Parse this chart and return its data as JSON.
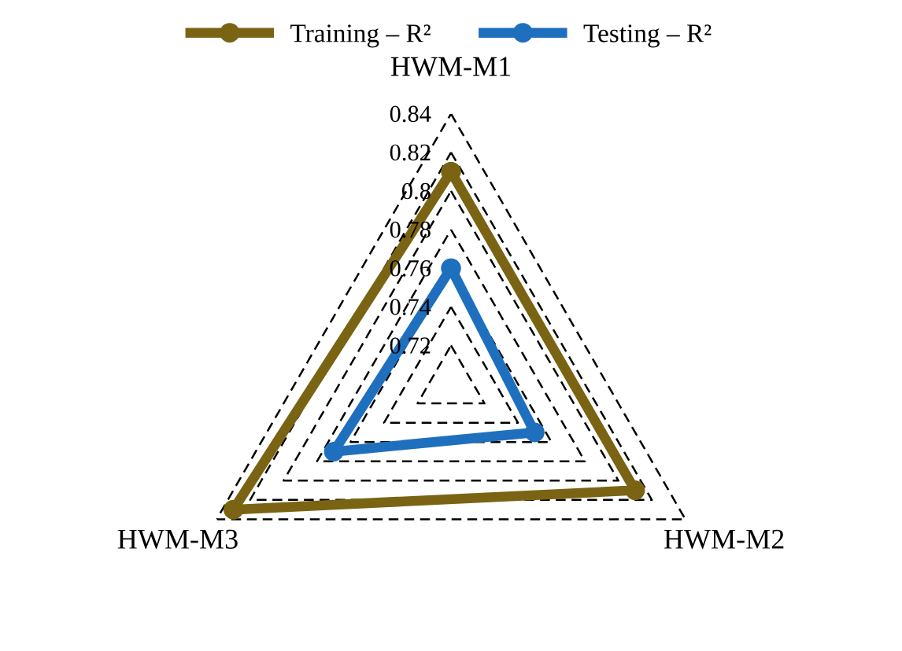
{
  "chart_data": {
    "type": "radar",
    "categories": [
      "HWM-M1",
      "HWM-M2",
      "HWM-M3"
    ],
    "series": [
      {
        "name": "Training – R²",
        "color": "#7a6414",
        "values": [
          0.81,
          0.81,
          0.83
        ]
      },
      {
        "name": "Testing – R²",
        "color": "#1f6fbf",
        "values": [
          0.76,
          0.75,
          0.77
        ]
      }
    ],
    "ylim": [
      0.7,
      0.84
    ],
    "yticks": [
      0.72,
      0.74,
      0.76,
      0.78,
      0.8,
      0.82,
      0.84
    ],
    "grid": true,
    "legend": "top",
    "marker": "circle",
    "line_style": "solid"
  }
}
